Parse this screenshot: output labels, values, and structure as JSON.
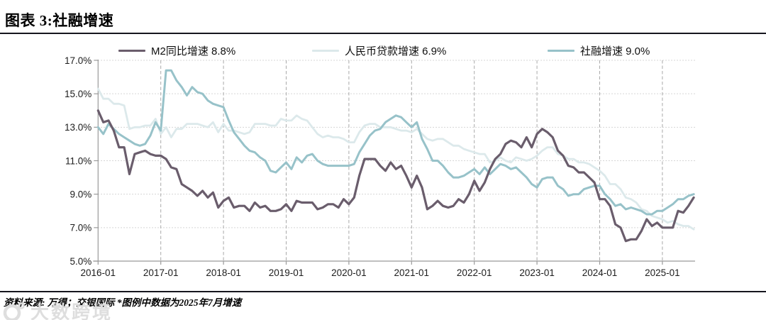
{
  "title": "图表 3:社融增速",
  "legend": [
    {
      "label": "M2同比增速 8.8%",
      "color": "#6a5d6c"
    },
    {
      "label": "人民币贷款增速 6.9%",
      "color": "#dce9eb"
    },
    {
      "label": "社融增速 9.0%",
      "color": "#97c2c9"
    }
  ],
  "footer": {
    "source": "资料来源: 万得；交银国际  *图例中数据为2025年7月增速"
  },
  "watermark": {
    "text": "大数跨境"
  },
  "chart_data": {
    "type": "line",
    "title": "社融增速",
    "x_start": "2016-01",
    "x_end": "2025-07",
    "x_interval": "monthly",
    "x_tick_labels": [
      "2016-01",
      "2017-01",
      "2018-01",
      "2019-01",
      "2020-01",
      "2021-01",
      "2022-01",
      "2023-01",
      "2024-01",
      "2025-01"
    ],
    "y_tick_labels": [
      "17.0%",
      "15.0%",
      "13.0%",
      "11.0%",
      "9.0%",
      "7.0%",
      "5.0%"
    ],
    "y_ticks": [
      17,
      15,
      13,
      11,
      9,
      7,
      5
    ],
    "ylim": [
      5,
      17
    ],
    "grid": true,
    "legend_position": "top",
    "draw_order": [
      1,
      2,
      0
    ],
    "series": [
      {
        "name": "M2同比增速",
        "latest_label": "8.8%",
        "color": "#6a5d6c",
        "width": 3.2,
        "values": [
          14.0,
          13.3,
          13.4,
          12.8,
          11.8,
          11.8,
          10.2,
          11.4,
          11.5,
          11.6,
          11.4,
          11.3,
          11.3,
          11.1,
          10.6,
          10.5,
          9.6,
          9.4,
          9.2,
          8.9,
          9.2,
          8.8,
          9.1,
          8.2,
          8.6,
          8.8,
          8.2,
          8.3,
          8.3,
          8.0,
          8.5,
          8.2,
          8.3,
          8.0,
          8.0,
          8.1,
          8.4,
          8.0,
          8.6,
          8.5,
          8.5,
          8.5,
          8.1,
          8.2,
          8.4,
          8.4,
          8.2,
          8.7,
          8.4,
          8.8,
          10.1,
          11.1,
          11.1,
          11.1,
          10.7,
          10.4,
          10.9,
          10.5,
          10.7,
          10.1,
          9.4,
          10.1,
          9.4,
          8.1,
          8.3,
          8.6,
          8.3,
          8.2,
          8.3,
          8.7,
          8.5,
          9.0,
          9.8,
          9.2,
          9.7,
          10.5,
          11.1,
          11.4,
          12.0,
          12.2,
          12.1,
          11.8,
          12.4,
          11.8,
          12.6,
          12.9,
          12.7,
          12.4,
          11.6,
          11.3,
          10.7,
          10.6,
          10.3,
          10.3,
          10.0,
          9.7,
          8.7,
          8.7,
          8.3,
          7.2,
          7.0,
          6.2,
          6.3,
          6.3,
          6.8,
          7.5,
          7.1,
          7.3,
          7.0,
          7.0,
          7.0,
          8.0,
          7.9,
          8.3,
          8.8
        ]
      },
      {
        "name": "人民币贷款增速",
        "latest_label": "6.9%",
        "color": "#dce9eb",
        "width": 2.8,
        "values": [
          15.3,
          14.7,
          14.7,
          14.4,
          14.4,
          14.3,
          12.9,
          13.0,
          13.0,
          13.1,
          13.1,
          13.5,
          12.6,
          13.0,
          12.4,
          12.9,
          12.9,
          13.2,
          13.2,
          13.2,
          13.1,
          13.0,
          13.3,
          12.7,
          13.2,
          12.8,
          12.8,
          12.7,
          12.6,
          12.7,
          13.2,
          13.2,
          13.2,
          13.1,
          13.1,
          13.5,
          13.4,
          13.4,
          13.7,
          13.5,
          13.4,
          13.0,
          12.6,
          12.4,
          12.5,
          12.4,
          12.4,
          12.3,
          12.1,
          12.1,
          12.7,
          13.1,
          13.2,
          13.2,
          13.0,
          13.0,
          13.0,
          12.9,
          12.8,
          12.8,
          12.7,
          12.9,
          12.6,
          12.3,
          12.2,
          12.3,
          12.3,
          12.1,
          11.9,
          11.9,
          11.7,
          11.6,
          11.5,
          11.4,
          11.4,
          10.9,
          11.0,
          11.2,
          11.0,
          10.9,
          11.2,
          11.1,
          11.0,
          11.1,
          11.3,
          11.6,
          11.8,
          11.8,
          11.4,
          11.3,
          11.1,
          11.1,
          10.9,
          10.9,
          10.8,
          10.6,
          10.4,
          10.1,
          9.6,
          9.6,
          9.3,
          8.8,
          8.7,
          8.5,
          8.1,
          8.0,
          7.7,
          7.6,
          7.5,
          7.3,
          7.4,
          7.2,
          7.1,
          7.1,
          6.9
        ]
      },
      {
        "name": "社融增速",
        "latest_label": "9.0%",
        "color": "#97c2c9",
        "width": 3.0,
        "values": [
          13.0,
          12.6,
          13.2,
          12.9,
          12.6,
          12.4,
          12.2,
          12.0,
          11.9,
          12.0,
          12.5,
          13.3,
          12.8,
          16.4,
          16.4,
          15.8,
          15.4,
          14.9,
          15.4,
          15.1,
          15.0,
          14.6,
          14.4,
          14.3,
          14.2,
          13.4,
          12.7,
          12.3,
          11.9,
          11.6,
          11.5,
          11.2,
          11.0,
          10.4,
          10.3,
          10.6,
          10.9,
          10.5,
          11.2,
          10.9,
          11.3,
          11.4,
          11.0,
          10.8,
          10.7,
          10.7,
          10.7,
          10.7,
          10.7,
          10.8,
          11.5,
          12.0,
          12.5,
          12.8,
          12.9,
          13.3,
          13.5,
          13.7,
          13.6,
          13.3,
          13.0,
          13.3,
          12.3,
          11.7,
          11.0,
          11.0,
          10.7,
          10.3,
          10.0,
          10.0,
          10.1,
          10.3,
          10.5,
          10.2,
          10.6,
          10.2,
          10.5,
          10.8,
          10.7,
          10.5,
          10.6,
          10.3,
          10.0,
          9.6,
          9.4,
          9.9,
          10.0,
          10.0,
          9.5,
          9.3,
          8.9,
          9.0,
          9.0,
          9.3,
          9.4,
          9.5,
          9.5,
          9.0,
          8.7,
          8.3,
          8.4,
          8.1,
          8.2,
          8.1,
          8.0,
          7.8,
          7.8,
          8.0,
          8.0,
          8.2,
          8.4,
          8.7,
          8.7,
          8.9,
          9.0
        ]
      }
    ]
  }
}
